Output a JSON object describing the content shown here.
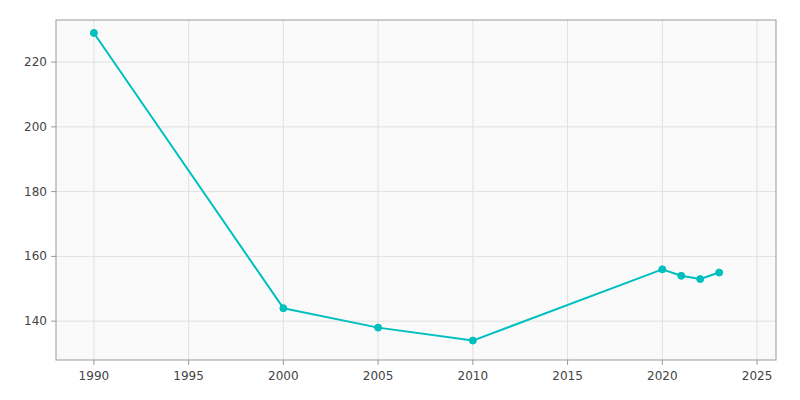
{
  "chart_data": {
    "type": "line",
    "x": [
      1990,
      2000,
      2005,
      2010,
      2020,
      2021,
      2022,
      2023
    ],
    "values": [
      229,
      144,
      138,
      134,
      156,
      154,
      153,
      155
    ],
    "color": "#00BFBF",
    "marker": "circle",
    "xlim": [
      1988,
      2026
    ],
    "ylim": [
      128,
      233
    ],
    "xticks": [
      1990,
      1995,
      2000,
      2005,
      2010,
      2015,
      2020,
      2025
    ],
    "yticks": [
      140,
      160,
      180,
      200,
      220
    ],
    "grid": true
  }
}
